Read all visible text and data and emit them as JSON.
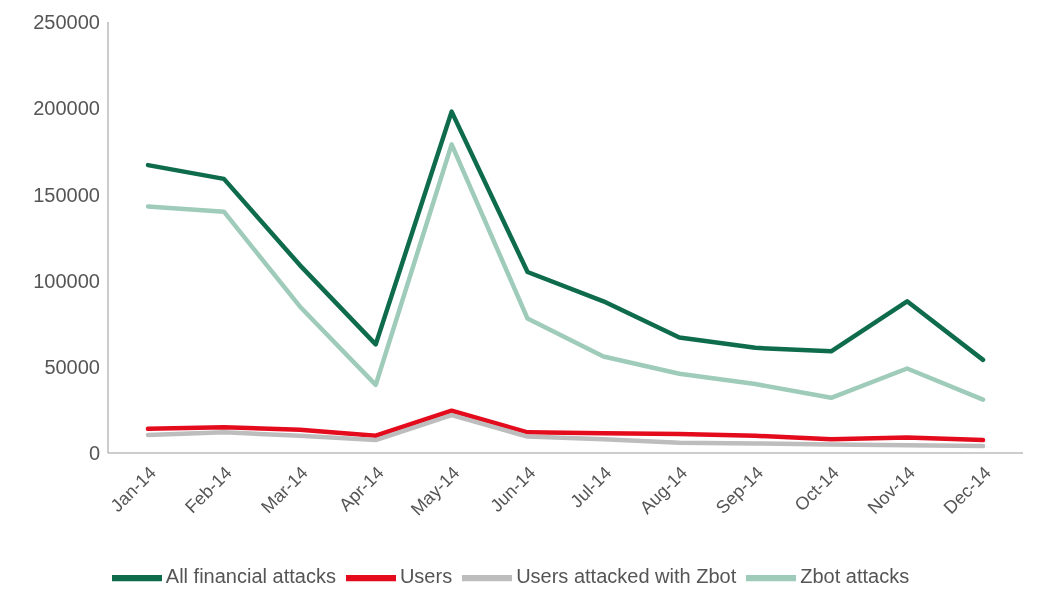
{
  "chart_data": {
    "type": "line",
    "categories": [
      "Jan-14",
      "Feb-14",
      "Mar-14",
      "Apr-14",
      "May-14",
      "Jun-14",
      "Jul-14",
      "Aug-14",
      "Sep-14",
      "Oct-14",
      "Nov-14",
      "Dec-14"
    ],
    "series": [
      {
        "name": "All financial attacks",
        "color": "#0e6b4c",
        "values": [
          167000,
          159000,
          109000,
          63000,
          198000,
          105000,
          88000,
          67000,
          61000,
          59000,
          88000,
          54000
        ]
      },
      {
        "name": "Users",
        "color": "#e30b1c",
        "values": [
          14000,
          15000,
          13500,
          10000,
          24500,
          12000,
          11500,
          11000,
          10000,
          8000,
          9000,
          7500
        ]
      },
      {
        "name": "Zbot attacks",
        "color": "#9ecbba",
        "values": [
          143000,
          140000,
          85000,
          39500,
          179000,
          78000,
          56000,
          46000,
          40000,
          32000,
          49000,
          31000
        ]
      },
      {
        "name": "Users attacked with Zbot",
        "color": "#bdbdbd",
        "values": [
          10500,
          12000,
          10000,
          7500,
          22000,
          9500,
          8000,
          6000,
          5500,
          5000,
          4500,
          4000
        ]
      }
    ],
    "ylim": [
      0,
      250000
    ],
    "yticks": [
      0,
      50000,
      100000,
      150000,
      200000,
      250000
    ],
    "legend": "bottom",
    "marker": "none",
    "line_style": "solid"
  }
}
